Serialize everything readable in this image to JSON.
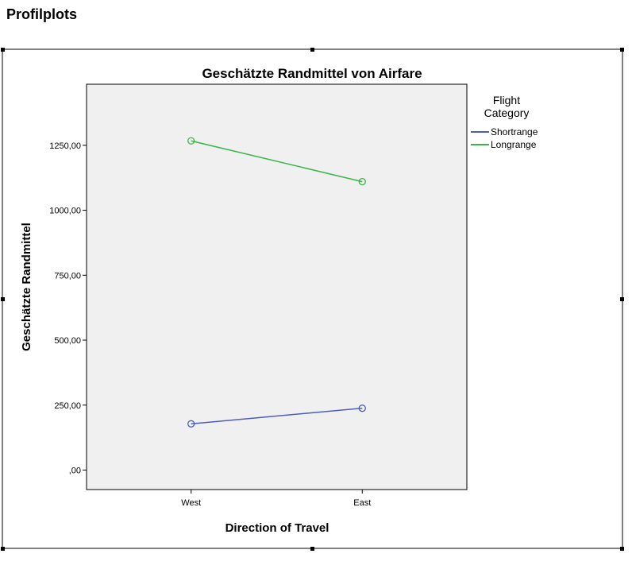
{
  "page": {
    "heading": "Profilplots"
  },
  "chart_data": {
    "type": "line",
    "title": "Geschätzte Randmittel von Airfare",
    "xlabel": "Direction of Travel",
    "ylabel": "Geschätzte Randmittel",
    "categories": [
      "West",
      "East"
    ],
    "ylim": [
      -75,
      1485
    ],
    "yticks": [
      0,
      250,
      500,
      750,
      1000,
      1250
    ],
    "ytick_labels": [
      ",00",
      "250,00",
      "500,00",
      "750,00",
      "1000,00",
      "1250,00"
    ],
    "grid": false,
    "legend": {
      "title_line1": "Flight",
      "title_line2": "Category",
      "placement": "right"
    },
    "plot_background": "#f0f0f0",
    "series": [
      {
        "name": "Shortrange",
        "color": "#4a5ec0",
        "values": [
          178,
          238
        ]
      },
      {
        "name": "Longrange",
        "color": "#3ab54a",
        "values": [
          1267,
          1110
        ]
      }
    ]
  }
}
